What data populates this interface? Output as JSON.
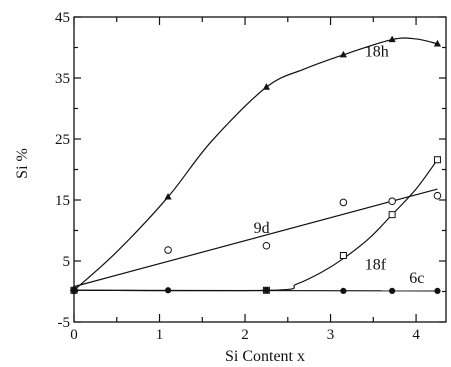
{
  "chart_data": {
    "type": "scatter",
    "xlabel": "Si Content x",
    "ylabel": "Si %",
    "xlim": [
      0,
      4.35
    ],
    "ylim": [
      -5,
      45
    ],
    "xticks": [
      0,
      1,
      2,
      3,
      4
    ],
    "yticks": [
      -5,
      5,
      15,
      25,
      35,
      45
    ],
    "xtick_labels": [
      "0",
      "1",
      "2",
      "3",
      "4"
    ],
    "ytick_labels": [
      "-5",
      "5",
      "15",
      "25",
      "35",
      "45"
    ],
    "x_minor_step": 0.5,
    "grid": false,
    "legend": "none",
    "series": [
      {
        "name": "18h",
        "marker": "filled-triangle",
        "points": [
          [
            0,
            0.2
          ],
          [
            1.1,
            15.5
          ],
          [
            2.25,
            33.5
          ],
          [
            3.15,
            38.8
          ],
          [
            3.72,
            41.3
          ],
          [
            4.25,
            40.6
          ]
        ],
        "curve": [
          [
            0,
            0.2
          ],
          [
            0.5,
            6.5
          ],
          [
            1.1,
            15.5
          ],
          [
            1.6,
            24.5
          ],
          [
            2.25,
            33.5
          ],
          [
            2.7,
            36.5
          ],
          [
            3.15,
            38.8
          ],
          [
            3.72,
            41.3
          ],
          [
            4.0,
            41.4
          ],
          [
            4.25,
            40.6
          ]
        ]
      },
      {
        "name": "9d",
        "marker": "open-circle",
        "points": [
          [
            0,
            0.2
          ],
          [
            1.1,
            6.8
          ],
          [
            2.25,
            7.5
          ],
          [
            3.15,
            14.6
          ],
          [
            3.72,
            14.8
          ],
          [
            4.25,
            15.7
          ]
        ],
        "curve": [
          [
            0,
            0.8
          ],
          [
            4.25,
            16.8
          ]
        ]
      },
      {
        "name": "18f",
        "marker": "open-square",
        "points": [
          [
            0,
            0.2
          ],
          [
            2.25,
            0.2
          ],
          [
            3.15,
            5.9
          ],
          [
            3.72,
            12.6
          ],
          [
            4.25,
            21.6
          ]
        ],
        "curve": [
          [
            0,
            0.2
          ],
          [
            2.3,
            0.2
          ],
          [
            2.6,
            1.2
          ],
          [
            2.9,
            3.2
          ],
          [
            3.15,
            5.4
          ],
          [
            3.45,
            8.7
          ],
          [
            3.72,
            12.6
          ],
          [
            4.0,
            16.8
          ],
          [
            4.25,
            21.6
          ]
        ]
      },
      {
        "name": "6c",
        "marker": "filled-circle",
        "points": [
          [
            0,
            0.2
          ],
          [
            1.1,
            0.2
          ],
          [
            2.25,
            0.2
          ],
          [
            3.15,
            0.1
          ],
          [
            3.72,
            0.1
          ],
          [
            4.25,
            0.1
          ]
        ],
        "curve": [
          [
            0,
            0.2
          ],
          [
            4.25,
            0.1
          ]
        ]
      }
    ],
    "labels": [
      {
        "text": "18h",
        "x": 3.4,
        "y": 38.5,
        "series": "18h"
      },
      {
        "text": "9d",
        "x": 2.1,
        "y": 9.6,
        "series": "9d"
      },
      {
        "text": "18f",
        "x": 3.4,
        "y": 3.6,
        "series": "18f"
      },
      {
        "text": "6c",
        "x": 3.92,
        "y": 1.4,
        "series": "6c"
      }
    ]
  }
}
